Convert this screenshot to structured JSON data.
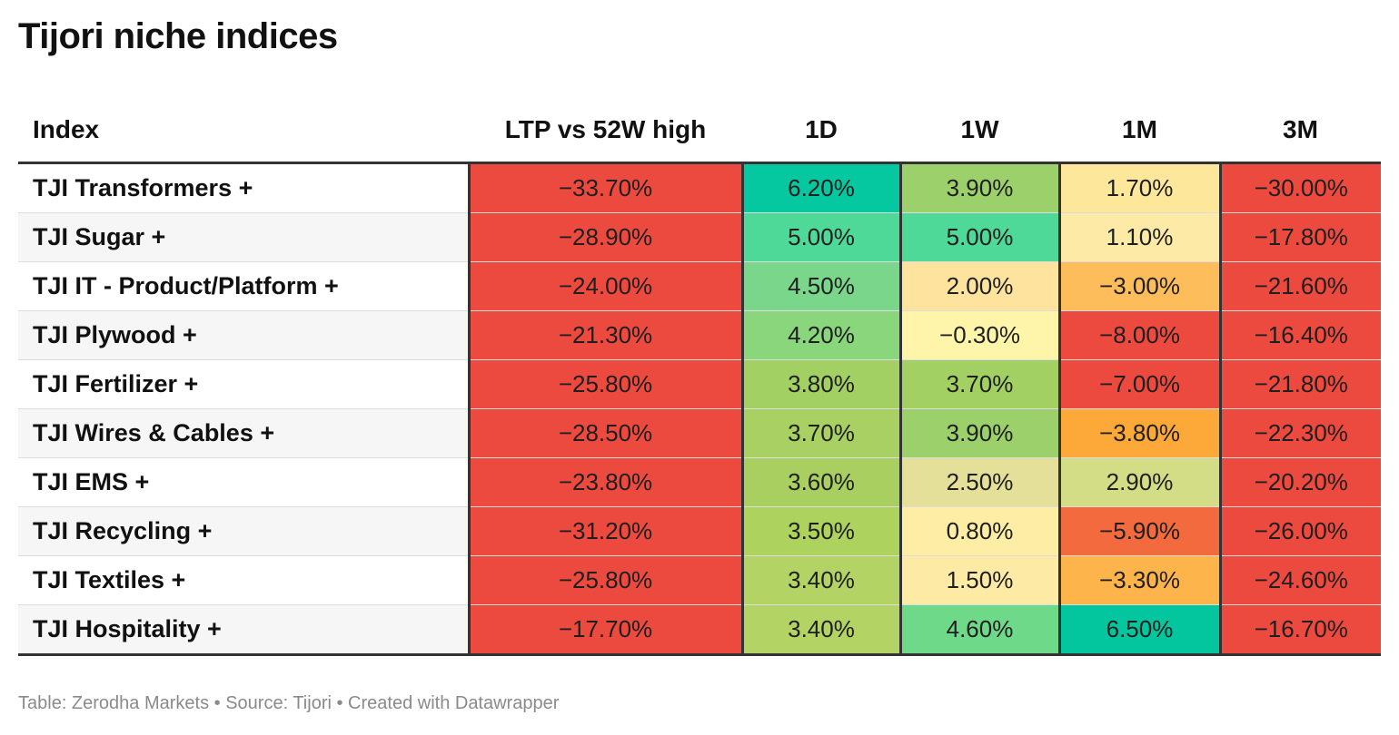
{
  "title": "Tijori niche indices",
  "footer": "Table: Zerodha Markets • Source: Tijori • Created with Datawrapper",
  "chart_data": {
    "type": "table",
    "title": "Tijori niche indices",
    "columns": [
      "Index",
      "LTP vs 52W high",
      "1D",
      "1W",
      "1M",
      "3M"
    ],
    "rows": [
      {
        "name": "TJI Transformers +",
        "values": [
          "−33.70%",
          "6.20%",
          "3.90%",
          "1.70%",
          "−30.00%"
        ],
        "numbers": [
          -33.7,
          6.2,
          3.9,
          1.7,
          -30.0
        ],
        "colors": [
          "#ec4a3f",
          "#06c8a0",
          "#9bd06a",
          "#fde79b",
          "#ec4a3f"
        ]
      },
      {
        "name": "TJI Sugar +",
        "values": [
          "−28.90%",
          "5.00%",
          "5.00%",
          "1.10%",
          "−17.80%"
        ],
        "numbers": [
          -28.9,
          5.0,
          5.0,
          1.1,
          -17.8
        ],
        "colors": [
          "#ec4a3f",
          "#4ed999",
          "#4ed999",
          "#fdeaa6",
          "#ec4a3f"
        ]
      },
      {
        "name": "TJI IT - Product/Platform +",
        "values": [
          "−24.00%",
          "4.50%",
          "2.00%",
          "−3.00%",
          "−21.60%"
        ],
        "numbers": [
          -24.0,
          4.5,
          2.0,
          -3.0,
          -21.6
        ],
        "colors": [
          "#ec4a3f",
          "#79d68a",
          "#fde39e",
          "#fdbd5b",
          "#ec4a3f"
        ]
      },
      {
        "name": "TJI Plywood +",
        "values": [
          "−21.30%",
          "4.20%",
          "−0.30%",
          "−8.00%",
          "−16.40%"
        ],
        "numbers": [
          -21.3,
          4.2,
          -0.3,
          -8.0,
          -16.4
        ],
        "colors": [
          "#ec4a3f",
          "#8ad67d",
          "#fef4aa",
          "#ec4a3f",
          "#ec4a3f"
        ]
      },
      {
        "name": "TJI Fertilizer +",
        "values": [
          "−25.80%",
          "3.80%",
          "3.70%",
          "−7.00%",
          "−21.80%"
        ],
        "numbers": [
          -25.8,
          3.8,
          3.7,
          -7.0,
          -21.8
        ],
        "colors": [
          "#ec4a3f",
          "#a3d062",
          "#a3d062",
          "#ec4a3f",
          "#ec4a3f"
        ]
      },
      {
        "name": "TJI Wires & Cables +",
        "values": [
          "−28.50%",
          "3.70%",
          "3.90%",
          "−3.80%",
          "−22.30%"
        ],
        "numbers": [
          -28.5,
          3.7,
          3.9,
          -3.8,
          -22.3
        ],
        "colors": [
          "#ec4a3f",
          "#a8d062",
          "#9bd06a",
          "#fda93a",
          "#ec4a3f"
        ]
      },
      {
        "name": "TJI EMS +",
        "values": [
          "−23.80%",
          "3.60%",
          "2.50%",
          "2.90%",
          "−20.20%"
        ],
        "numbers": [
          -23.8,
          3.6,
          2.5,
          2.9,
          -20.2
        ],
        "colors": [
          "#ec4a3f",
          "#a9cf60",
          "#e4e09a",
          "#d2dd86",
          "#ec4a3f"
        ]
      },
      {
        "name": "TJI Recycling +",
        "values": [
          "−31.20%",
          "3.50%",
          "0.80%",
          "−5.90%",
          "−26.00%"
        ],
        "numbers": [
          -31.2,
          3.5,
          0.8,
          -5.9,
          -26.0
        ],
        "colors": [
          "#ec4a3f",
          "#aed25e",
          "#feeda5",
          "#f26a3d",
          "#ec4a3f"
        ]
      },
      {
        "name": "TJI Textiles +",
        "values": [
          "−25.80%",
          "3.40%",
          "1.50%",
          "−3.30%",
          "−24.60%"
        ],
        "numbers": [
          -25.8,
          3.4,
          1.5,
          -3.3,
          -24.6
        ],
        "colors": [
          "#ec4a3f",
          "#b3d365",
          "#fdeba5",
          "#fdb44a",
          "#ec4a3f"
        ]
      },
      {
        "name": "TJI Hospitality +",
        "values": [
          "−17.70%",
          "3.40%",
          "4.60%",
          "6.50%",
          "−16.70%"
        ],
        "numbers": [
          -17.7,
          3.4,
          4.6,
          6.5,
          -16.7
        ],
        "colors": [
          "#ec4a3f",
          "#b3d365",
          "#6fd98a",
          "#03c59e",
          "#ec4a3f"
        ]
      }
    ]
  }
}
